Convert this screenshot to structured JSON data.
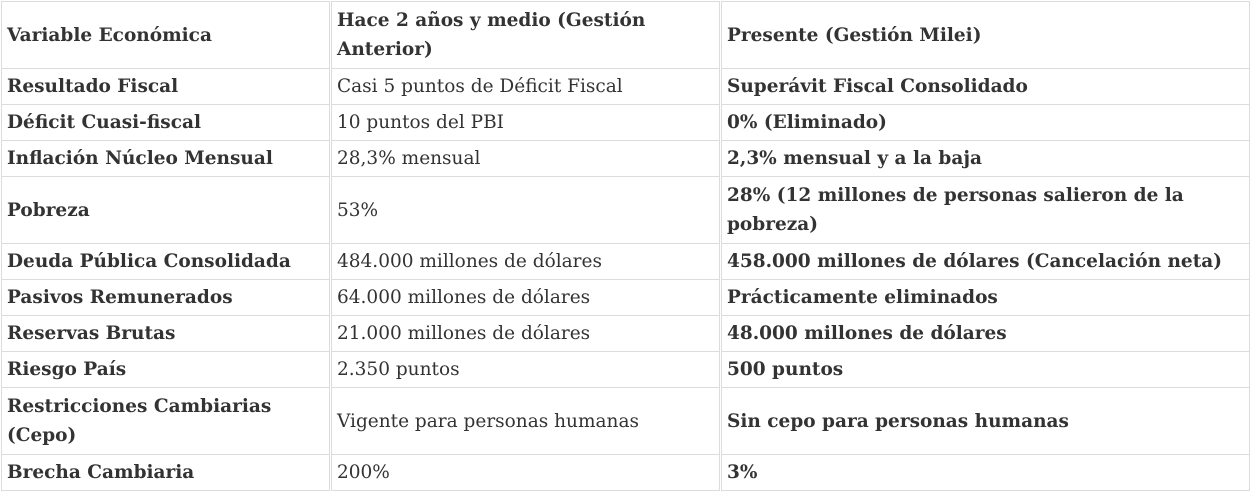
{
  "table": {
    "headers": [
      "Variable Económica",
      "Hace 2 años y medio (Gestión Anterior)",
      "Presente (Gestión Milei)"
    ],
    "rows": [
      [
        "Resultado Fiscal",
        "Casi 5 puntos de Déficit Fiscal",
        "Superávit Fiscal Consolidado"
      ],
      [
        "Déficit Cuasi-fiscal",
        "10 puntos del PBI",
        "0% (Eliminado)"
      ],
      [
        "Inflación Núcleo Mensual",
        "28,3% mensual",
        "2,3% mensual y a la baja"
      ],
      [
        "Pobreza",
        "53%",
        "28% (12 millones de personas salieron de la pobreza)"
      ],
      [
        "Deuda Pública Consolidada",
        "484.000 millones de dólares",
        "458.000 millones de dólares (Cancelación neta)"
      ],
      [
        "Pasivos Remunerados",
        "64.000 millones de dólares",
        "Prácticamente eliminados"
      ],
      [
        "Reservas Brutas",
        "21.000 millones de dólares",
        "48.000 millones de dólares"
      ],
      [
        "Riesgo País",
        "2.350 puntos",
        "500 puntos"
      ],
      [
        "Restricciones Cambiarias (Cepo)",
        "Vigente para personas humanas",
        "Sin cepo para personas humanas"
      ],
      [
        "Brecha Cambiaria",
        "200%",
        "3%"
      ]
    ]
  }
}
